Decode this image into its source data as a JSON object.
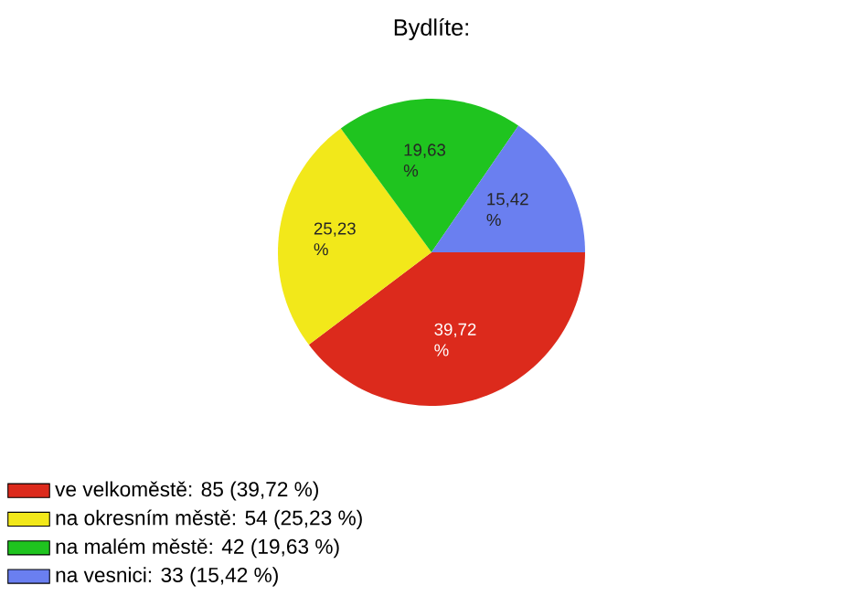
{
  "chart_data": {
    "type": "pie",
    "title": "Bydlíte:",
    "categories": [
      "ve velkoměstě: 85 (39,72 %)",
      "na okresním městě: 54 (25,23 %)",
      "na malém městě: 42 (19,63 %)",
      "na vesnici: 33 (15,42 %)"
    ],
    "values": [
      39.72,
      25.23,
      19.63,
      15.42
    ],
    "value_labels": [
      "39,72 %",
      "25,23 %",
      "19,63 %",
      "15,42 %"
    ],
    "colors": [
      "#dc2a1c",
      "#f2e81a",
      "#1fc41f",
      "#6a7ff0"
    ],
    "legend": "bottom left"
  }
}
